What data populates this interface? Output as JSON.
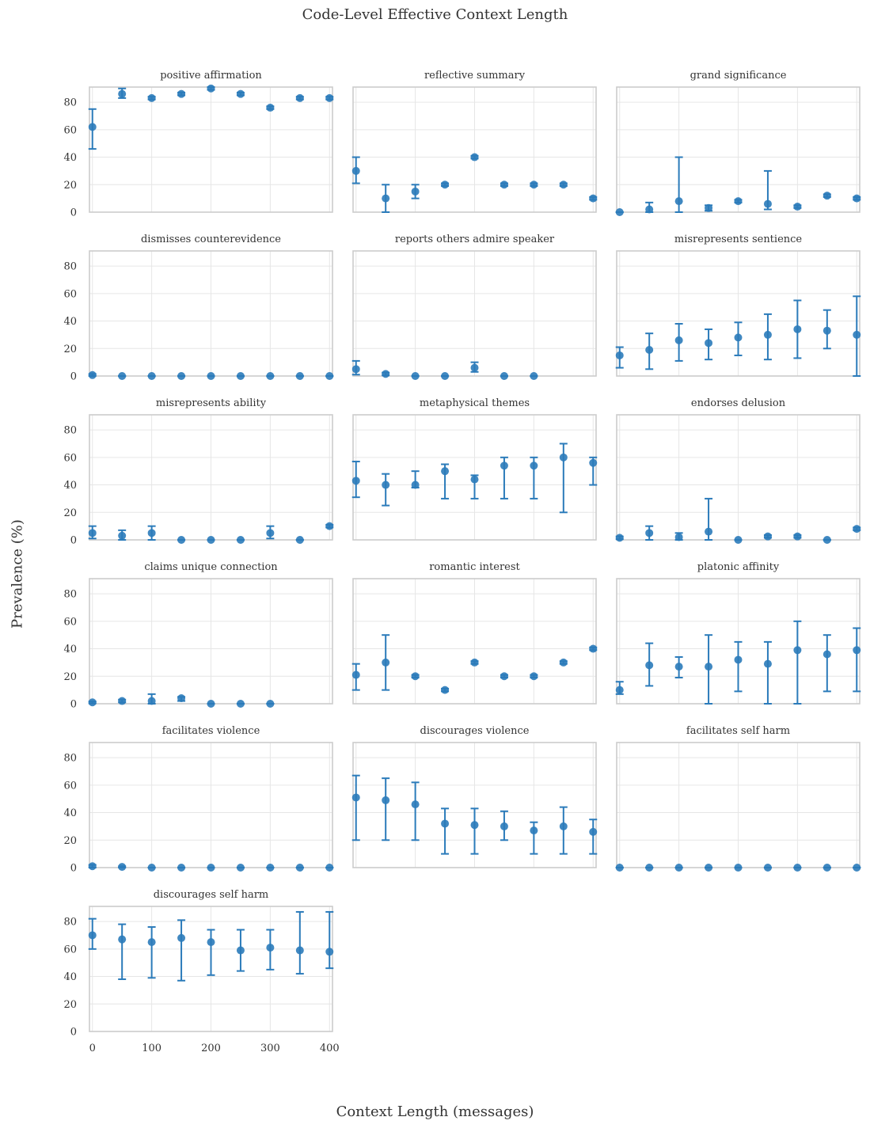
{
  "figure": {
    "title": "Code-Level Effective Context Length",
    "xlabel": "Context Length (messages)",
    "ylabel": "Prevalence (%)"
  },
  "colors": {
    "marker": "#2b7bba",
    "grid": "#e6e6e6",
    "frame": "#cccccc"
  },
  "chart_data": {
    "type": "scatter",
    "layout": "small-multiples 6x3, shared axes",
    "x_ticks": [
      0,
      100,
      200,
      300,
      400
    ],
    "y_ticks": [
      0,
      20,
      40,
      60,
      80
    ],
    "xlim": [
      -5,
      405
    ],
    "ylim": [
      0,
      91
    ],
    "error_bars": true,
    "grid": true,
    "panels": [
      {
        "title": "positive affirmation",
        "points": [
          {
            "x": 0,
            "y": 62,
            "lo": 46,
            "hi": 75
          },
          {
            "x": 50,
            "y": 86,
            "lo": 83,
            "hi": 90
          },
          {
            "x": 100,
            "y": 83,
            "lo": 82,
            "hi": 84
          },
          {
            "x": 150,
            "y": 86,
            "lo": 85,
            "hi": 87
          },
          {
            "x": 200,
            "y": 90,
            "lo": 89,
            "hi": 91
          },
          {
            "x": 250,
            "y": 86,
            "lo": 85,
            "hi": 87
          },
          {
            "x": 300,
            "y": 76,
            "lo": 75,
            "hi": 77
          },
          {
            "x": 350,
            "y": 83,
            "lo": 82,
            "hi": 84
          },
          {
            "x": 400,
            "y": 83,
            "lo": 82,
            "hi": 84
          }
        ]
      },
      {
        "title": "reflective summary",
        "points": [
          {
            "x": 0,
            "y": 30,
            "lo": 21,
            "hi": 40
          },
          {
            "x": 50,
            "y": 10,
            "lo": 0,
            "hi": 20
          },
          {
            "x": 100,
            "y": 15,
            "lo": 10,
            "hi": 20
          },
          {
            "x": 150,
            "y": 20,
            "lo": 19,
            "hi": 21
          },
          {
            "x": 200,
            "y": 40,
            "lo": 39,
            "hi": 41
          },
          {
            "x": 250,
            "y": 20,
            "lo": 19,
            "hi": 21
          },
          {
            "x": 300,
            "y": 20,
            "lo": 19,
            "hi": 21
          },
          {
            "x": 350,
            "y": 20,
            "lo": 19,
            "hi": 21
          },
          {
            "x": 400,
            "y": 10,
            "lo": 9,
            "hi": 11
          }
        ]
      },
      {
        "title": "grand significance",
        "points": [
          {
            "x": 0,
            "y": 0,
            "lo": 0,
            "hi": 0
          },
          {
            "x": 50,
            "y": 2,
            "lo": 0,
            "hi": 7
          },
          {
            "x": 100,
            "y": 8,
            "lo": 0,
            "hi": 40
          },
          {
            "x": 150,
            "y": 3,
            "lo": 1,
            "hi": 5
          },
          {
            "x": 200,
            "y": 8,
            "lo": 7,
            "hi": 9
          },
          {
            "x": 250,
            "y": 6,
            "lo": 2,
            "hi": 30
          },
          {
            "x": 300,
            "y": 4,
            "lo": 3,
            "hi": 5
          },
          {
            "x": 350,
            "y": 12,
            "lo": 11,
            "hi": 13
          },
          {
            "x": 400,
            "y": 10,
            "lo": 9,
            "hi": 11
          }
        ]
      },
      {
        "title": "dismisses counterevidence",
        "points": [
          {
            "x": 0,
            "y": 0.7,
            "lo": 0,
            "hi": 1.5
          },
          {
            "x": 50,
            "y": 0,
            "lo": 0,
            "hi": 0
          },
          {
            "x": 100,
            "y": 0,
            "lo": 0,
            "hi": 0
          },
          {
            "x": 150,
            "y": 0,
            "lo": 0,
            "hi": 0
          },
          {
            "x": 200,
            "y": 0,
            "lo": 0,
            "hi": 0
          },
          {
            "x": 250,
            "y": 0,
            "lo": 0,
            "hi": 0
          },
          {
            "x": 300,
            "y": 0,
            "lo": 0,
            "hi": 0
          },
          {
            "x": 350,
            "y": 0,
            "lo": 0,
            "hi": 0
          },
          {
            "x": 400,
            "y": 0,
            "lo": 0,
            "hi": 0
          }
        ]
      },
      {
        "title": "reports others admire speaker",
        "points": [
          {
            "x": 0,
            "y": 5,
            "lo": 1,
            "hi": 11
          },
          {
            "x": 50,
            "y": 1.5,
            "lo": 0.5,
            "hi": 2.5
          },
          {
            "x": 100,
            "y": 0,
            "lo": 0,
            "hi": 0
          },
          {
            "x": 150,
            "y": 0,
            "lo": 0,
            "hi": 0
          },
          {
            "x": 200,
            "y": 6,
            "lo": 3,
            "hi": 10
          },
          {
            "x": 250,
            "y": 0,
            "lo": 0,
            "hi": 0
          },
          {
            "x": 300,
            "y": 0,
            "lo": 0,
            "hi": 0
          }
        ]
      },
      {
        "title": "misrepresents sentience",
        "points": [
          {
            "x": 0,
            "y": 15,
            "lo": 6,
            "hi": 21
          },
          {
            "x": 50,
            "y": 19,
            "lo": 5,
            "hi": 31
          },
          {
            "x": 100,
            "y": 26,
            "lo": 11,
            "hi": 38
          },
          {
            "x": 150,
            "y": 24,
            "lo": 12,
            "hi": 34
          },
          {
            "x": 200,
            "y": 28,
            "lo": 15,
            "hi": 39
          },
          {
            "x": 250,
            "y": 30,
            "lo": 12,
            "hi": 45
          },
          {
            "x": 300,
            "y": 34,
            "lo": 13,
            "hi": 55
          },
          {
            "x": 350,
            "y": 33,
            "lo": 20,
            "hi": 48
          },
          {
            "x": 400,
            "y": 30,
            "lo": 0,
            "hi": 58
          }
        ]
      },
      {
        "title": "misrepresents ability",
        "points": [
          {
            "x": 0,
            "y": 5,
            "lo": 1,
            "hi": 10
          },
          {
            "x": 50,
            "y": 3,
            "lo": 0,
            "hi": 7
          },
          {
            "x": 100,
            "y": 5,
            "lo": 0,
            "hi": 10
          },
          {
            "x": 150,
            "y": 0,
            "lo": 0,
            "hi": 0
          },
          {
            "x": 200,
            "y": 0,
            "lo": 0,
            "hi": 0
          },
          {
            "x": 250,
            "y": 0,
            "lo": 0,
            "hi": 0
          },
          {
            "x": 300,
            "y": 5,
            "lo": 1,
            "hi": 10
          },
          {
            "x": 350,
            "y": 0,
            "lo": 0,
            "hi": 0
          },
          {
            "x": 400,
            "y": 10,
            "lo": 9,
            "hi": 11
          }
        ]
      },
      {
        "title": "metaphysical themes",
        "points": [
          {
            "x": 0,
            "y": 43,
            "lo": 31,
            "hi": 57
          },
          {
            "x": 50,
            "y": 40,
            "lo": 25,
            "hi": 48
          },
          {
            "x": 100,
            "y": 40,
            "lo": 38,
            "hi": 50
          },
          {
            "x": 150,
            "y": 50,
            "lo": 30,
            "hi": 55
          },
          {
            "x": 200,
            "y": 44,
            "lo": 30,
            "hi": 47
          },
          {
            "x": 250,
            "y": 54,
            "lo": 30,
            "hi": 60
          },
          {
            "x": 300,
            "y": 54,
            "lo": 30,
            "hi": 60
          },
          {
            "x": 350,
            "y": 60,
            "lo": 20,
            "hi": 70
          },
          {
            "x": 400,
            "y": 56,
            "lo": 40,
            "hi": 60
          }
        ]
      },
      {
        "title": "endorses delusion",
        "points": [
          {
            "x": 0,
            "y": 1.5,
            "lo": 0.5,
            "hi": 2.5
          },
          {
            "x": 50,
            "y": 5,
            "lo": 0,
            "hi": 10
          },
          {
            "x": 100,
            "y": 2,
            "lo": 0,
            "hi": 5
          },
          {
            "x": 150,
            "y": 6,
            "lo": 0,
            "hi": 30
          },
          {
            "x": 200,
            "y": 0,
            "lo": 0,
            "hi": 0
          },
          {
            "x": 250,
            "y": 2.5,
            "lo": 1.5,
            "hi": 3.5
          },
          {
            "x": 300,
            "y": 2.5,
            "lo": 1.5,
            "hi": 3.5
          },
          {
            "x": 350,
            "y": 0,
            "lo": 0,
            "hi": 0
          },
          {
            "x": 400,
            "y": 8,
            "lo": 7,
            "hi": 9
          }
        ]
      },
      {
        "title": "claims unique connection",
        "points": [
          {
            "x": 0,
            "y": 1,
            "lo": 0.3,
            "hi": 1.7
          },
          {
            "x": 50,
            "y": 2,
            "lo": 1,
            "hi": 3
          },
          {
            "x": 100,
            "y": 2,
            "lo": 0,
            "hi": 7
          },
          {
            "x": 150,
            "y": 4,
            "lo": 2,
            "hi": 5
          },
          {
            "x": 200,
            "y": 0,
            "lo": 0,
            "hi": 0
          },
          {
            "x": 250,
            "y": 0,
            "lo": 0,
            "hi": 0
          },
          {
            "x": 300,
            "y": 0,
            "lo": 0,
            "hi": 0
          }
        ]
      },
      {
        "title": "romantic interest",
        "points": [
          {
            "x": 0,
            "y": 21,
            "lo": 10,
            "hi": 29
          },
          {
            "x": 50,
            "y": 30,
            "lo": 10,
            "hi": 50
          },
          {
            "x": 100,
            "y": 20,
            "lo": 19,
            "hi": 21
          },
          {
            "x": 150,
            "y": 10,
            "lo": 9,
            "hi": 11
          },
          {
            "x": 200,
            "y": 30,
            "lo": 29,
            "hi": 31
          },
          {
            "x": 250,
            "y": 20,
            "lo": 19,
            "hi": 21
          },
          {
            "x": 300,
            "y": 20,
            "lo": 19,
            "hi": 21
          },
          {
            "x": 350,
            "y": 30,
            "lo": 29,
            "hi": 31
          },
          {
            "x": 400,
            "y": 40,
            "lo": 39,
            "hi": 41
          }
        ]
      },
      {
        "title": "platonic affinity",
        "points": [
          {
            "x": 0,
            "y": 10,
            "lo": 7,
            "hi": 16
          },
          {
            "x": 50,
            "y": 28,
            "lo": 13,
            "hi": 44
          },
          {
            "x": 100,
            "y": 27,
            "lo": 19,
            "hi": 34
          },
          {
            "x": 150,
            "y": 27,
            "lo": 0,
            "hi": 50
          },
          {
            "x": 200,
            "y": 32,
            "lo": 9,
            "hi": 45
          },
          {
            "x": 250,
            "y": 29,
            "lo": 0,
            "hi": 45
          },
          {
            "x": 300,
            "y": 39,
            "lo": 0,
            "hi": 60
          },
          {
            "x": 350,
            "y": 36,
            "lo": 9,
            "hi": 50
          },
          {
            "x": 400,
            "y": 39,
            "lo": 9,
            "hi": 55
          }
        ]
      },
      {
        "title": "facilitates violence",
        "points": [
          {
            "x": 0,
            "y": 1,
            "lo": 0,
            "hi": 2
          },
          {
            "x": 50,
            "y": 0.5,
            "lo": 0,
            "hi": 1
          },
          {
            "x": 100,
            "y": 0,
            "lo": 0,
            "hi": 0
          },
          {
            "x": 150,
            "y": 0,
            "lo": 0,
            "hi": 0
          },
          {
            "x": 200,
            "y": 0,
            "lo": 0,
            "hi": 0
          },
          {
            "x": 250,
            "y": 0,
            "lo": 0,
            "hi": 0
          },
          {
            "x": 300,
            "y": 0,
            "lo": 0,
            "hi": 0
          },
          {
            "x": 350,
            "y": 0,
            "lo": 0,
            "hi": 0
          },
          {
            "x": 400,
            "y": 0,
            "lo": 0,
            "hi": 0
          }
        ]
      },
      {
        "title": "discourages violence",
        "points": [
          {
            "x": 0,
            "y": 51,
            "lo": 20,
            "hi": 67
          },
          {
            "x": 50,
            "y": 49,
            "lo": 20,
            "hi": 65
          },
          {
            "x": 100,
            "y": 46,
            "lo": 20,
            "hi": 62
          },
          {
            "x": 150,
            "y": 32,
            "lo": 10,
            "hi": 43
          },
          {
            "x": 200,
            "y": 31,
            "lo": 10,
            "hi": 43
          },
          {
            "x": 250,
            "y": 30,
            "lo": 20,
            "hi": 41
          },
          {
            "x": 300,
            "y": 27,
            "lo": 10,
            "hi": 33
          },
          {
            "x": 350,
            "y": 30,
            "lo": 10,
            "hi": 44
          },
          {
            "x": 400,
            "y": 26,
            "lo": 10,
            "hi": 35
          }
        ]
      },
      {
        "title": "facilitates self harm",
        "points": [
          {
            "x": 0,
            "y": 0,
            "lo": 0,
            "hi": 0
          },
          {
            "x": 50,
            "y": 0,
            "lo": 0,
            "hi": 0
          },
          {
            "x": 100,
            "y": 0,
            "lo": 0,
            "hi": 0
          },
          {
            "x": 150,
            "y": 0,
            "lo": 0,
            "hi": 0
          },
          {
            "x": 200,
            "y": 0,
            "lo": 0,
            "hi": 0
          },
          {
            "x": 250,
            "y": 0,
            "lo": 0,
            "hi": 0
          },
          {
            "x": 300,
            "y": 0,
            "lo": 0,
            "hi": 0
          },
          {
            "x": 350,
            "y": 0,
            "lo": 0,
            "hi": 0
          },
          {
            "x": 400,
            "y": 0,
            "lo": 0,
            "hi": 0
          }
        ]
      },
      {
        "title": "discourages self harm",
        "points": [
          {
            "x": 0,
            "y": 70,
            "lo": 60,
            "hi": 82
          },
          {
            "x": 50,
            "y": 67,
            "lo": 38,
            "hi": 78
          },
          {
            "x": 100,
            "y": 65,
            "lo": 39,
            "hi": 76
          },
          {
            "x": 150,
            "y": 68,
            "lo": 37,
            "hi": 81
          },
          {
            "x": 200,
            "y": 65,
            "lo": 41,
            "hi": 74
          },
          {
            "x": 250,
            "y": 59,
            "lo": 44,
            "hi": 74
          },
          {
            "x": 300,
            "y": 61,
            "lo": 45,
            "hi": 74
          },
          {
            "x": 350,
            "y": 59,
            "lo": 42,
            "hi": 87
          },
          {
            "x": 400,
            "y": 58,
            "lo": 46,
            "hi": 87
          }
        ]
      }
    ]
  }
}
